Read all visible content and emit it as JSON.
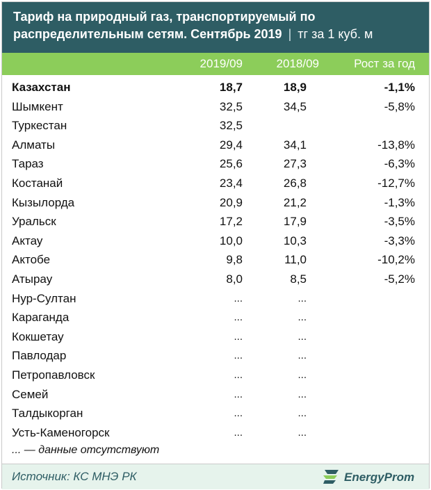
{
  "header": {
    "title": "Тариф на природный газ, транспортируемый по распределительным сетям. Сентябрь 2019",
    "separator": "|",
    "unit": "тг за 1 куб. м"
  },
  "columns": [
    "2019/09",
    "2018/09",
    "Рост за год"
  ],
  "rows": [
    {
      "city": "Казахстан",
      "v2019": "18,7",
      "v2018": "18,9",
      "growth": "-1,1%"
    },
    {
      "city": "Шымкент",
      "v2019": "32,5",
      "v2018": "34,5",
      "growth": "-5,8%"
    },
    {
      "city": "Туркестан",
      "v2019": "32,5",
      "v2018": "",
      "growth": ""
    },
    {
      "city": "Алматы",
      "v2019": "29,4",
      "v2018": "34,1",
      "growth": "-13,8%"
    },
    {
      "city": "Тараз",
      "v2019": "25,6",
      "v2018": "27,3",
      "growth": "-6,3%"
    },
    {
      "city": "Костанай",
      "v2019": "23,4",
      "v2018": "26,8",
      "growth": "-12,7%"
    },
    {
      "city": "Кызылорда",
      "v2019": "20,9",
      "v2018": "21,2",
      "growth": "-1,3%"
    },
    {
      "city": "Уральск",
      "v2019": "17,2",
      "v2018": "17,9",
      "growth": "-3,5%"
    },
    {
      "city": "Актау",
      "v2019": "10,0",
      "v2018": "10,3",
      "growth": "-3,3%"
    },
    {
      "city": "Актобе",
      "v2019": "9,8",
      "v2018": "11,0",
      "growth": "-10,2%"
    },
    {
      "city": "Атырау",
      "v2019": "8,0",
      "v2018": "8,5",
      "growth": "-5,2%"
    },
    {
      "city": "Нур-Султан",
      "v2019": "...",
      "v2018": "...",
      "growth": ""
    },
    {
      "city": "Караганда",
      "v2019": "...",
      "v2018": "...",
      "growth": ""
    },
    {
      "city": "Кокшетау",
      "v2019": "...",
      "v2018": "...",
      "growth": ""
    },
    {
      "city": "Павлодар",
      "v2019": "...",
      "v2018": "...",
      "growth": ""
    },
    {
      "city": "Петропавловск",
      "v2019": "...",
      "v2018": "...",
      "growth": ""
    },
    {
      "city": "Семей",
      "v2019": "...",
      "v2018": "...",
      "growth": ""
    },
    {
      "city": "Талдыкорган",
      "v2019": "...",
      "v2018": "...",
      "growth": ""
    },
    {
      "city": "Усть-Каменогорск",
      "v2019": "...",
      "v2018": "...",
      "growth": ""
    }
  ],
  "note": "... — данные отсутствуют",
  "footer": {
    "source": "Источник: КС МНЭ РК",
    "brand": "EnergyProm",
    "logo_icon": "energyprom-logo-icon"
  },
  "colors": {
    "title_bg": "#2e5d64",
    "header_bg": "#8ccd5a",
    "footer_bg": "#e6f3ec"
  }
}
